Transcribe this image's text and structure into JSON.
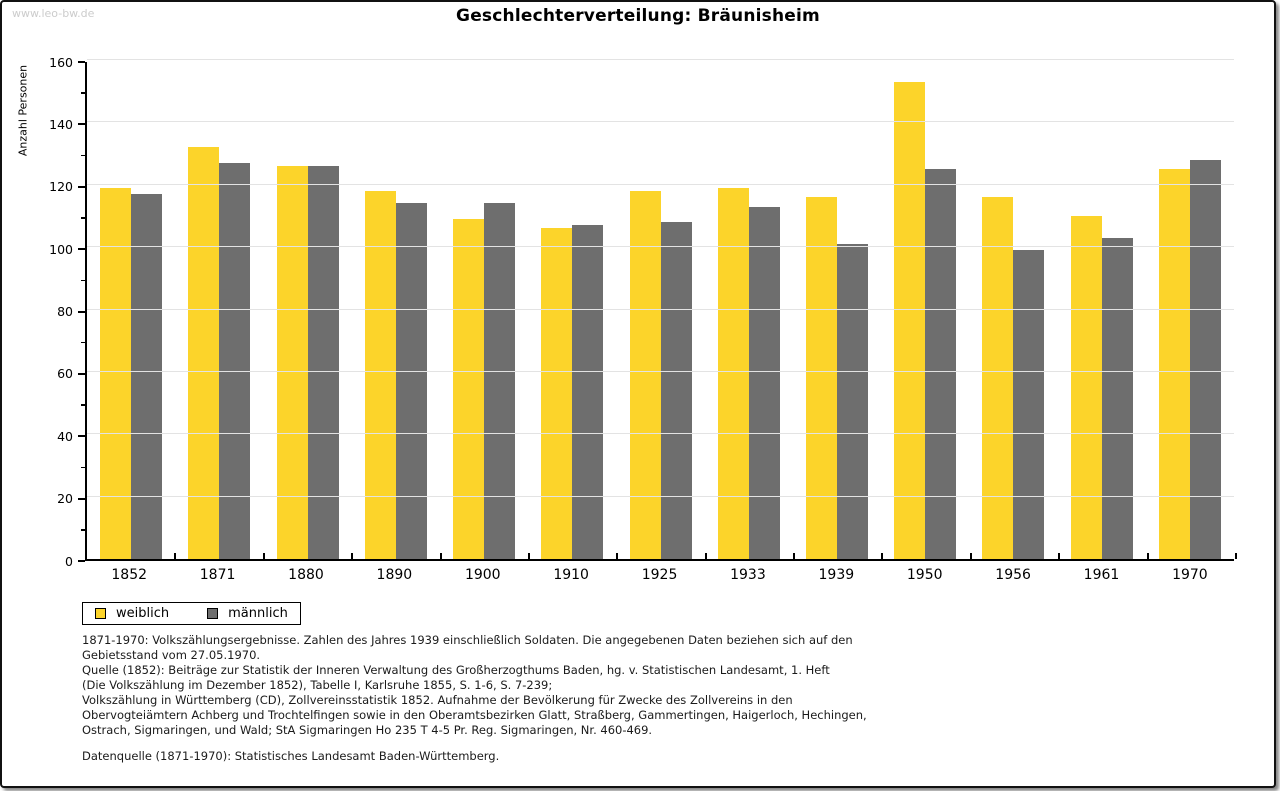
{
  "watermark": "www.leo-bw.de",
  "title": "Geschlechterverteilung: Bräunisheim",
  "chart_data": {
    "type": "bar",
    "title": "Geschlechterverteilung: Bräunisheim",
    "xlabel": "",
    "ylabel": "Anzahl Personen",
    "ylim": [
      0,
      160
    ],
    "ytick_step": 20,
    "ytick_minor_step": 10,
    "grid": true,
    "legend_position": "bottom-left",
    "categories": [
      "1852",
      "1871",
      "1880",
      "1890",
      "1900",
      "1910",
      "1925",
      "1933",
      "1939",
      "1950",
      "1956",
      "1961",
      "1970"
    ],
    "series": [
      {
        "name": "weiblich",
        "color": "#FCD42A",
        "values": [
          119,
          132,
          126,
          118,
          109,
          106,
          118,
          119,
          116,
          153,
          116,
          110,
          125
        ]
      },
      {
        "name": "männlich",
        "color": "#6E6E6E",
        "values": [
          117,
          127,
          126,
          114,
          114,
          107,
          108,
          113,
          101,
          125,
          99,
          103,
          128
        ]
      }
    ]
  },
  "legend": {
    "items": [
      {
        "label": "weiblich",
        "color": "#FCD42A"
      },
      {
        "label": "männlich",
        "color": "#6E6E6E"
      }
    ]
  },
  "notes": {
    "lines": [
      "1871-1970: Volkszählungsergebnisse. Zahlen des Jahres 1939 einschließlich Soldaten. Die angegebenen Daten beziehen sich auf den",
      "Gebietsstand vom 27.05.1970.",
      "Quelle (1852): Beiträge zur Statistik der Inneren Verwaltung des Großherzogthums Baden, hg. v. Statistischen Landesamt, 1. Heft",
      "(Die Volkszählung im Dezember 1852), Tabelle I, Karlsruhe 1855, S. 1-6, S. 7-239;",
      "Volkszählung in Württemberg (CD), Zollvereinsstatistik 1852. Aufnahme der Bevölkerung für Zwecke des Zollvereins in den",
      "Obervogteiämtern Achberg und Trochtelfingen sowie in den Oberamtsbezirken Glatt, Straßberg, Gammertingen, Haigerloch, Hechingen,",
      "Ostrach, Sigmaringen, und Wald; StA Sigmaringen Ho 235 T 4-5 Pr. Reg. Sigmaringen, Nr. 460-469."
    ],
    "datasource": "Datenquelle (1871-1970): Statistisches Landesamt Baden-Württemberg."
  },
  "colors": {
    "grid": "#E3E3E3",
    "axis": "#000000",
    "watermark": "#CCCCCC"
  }
}
